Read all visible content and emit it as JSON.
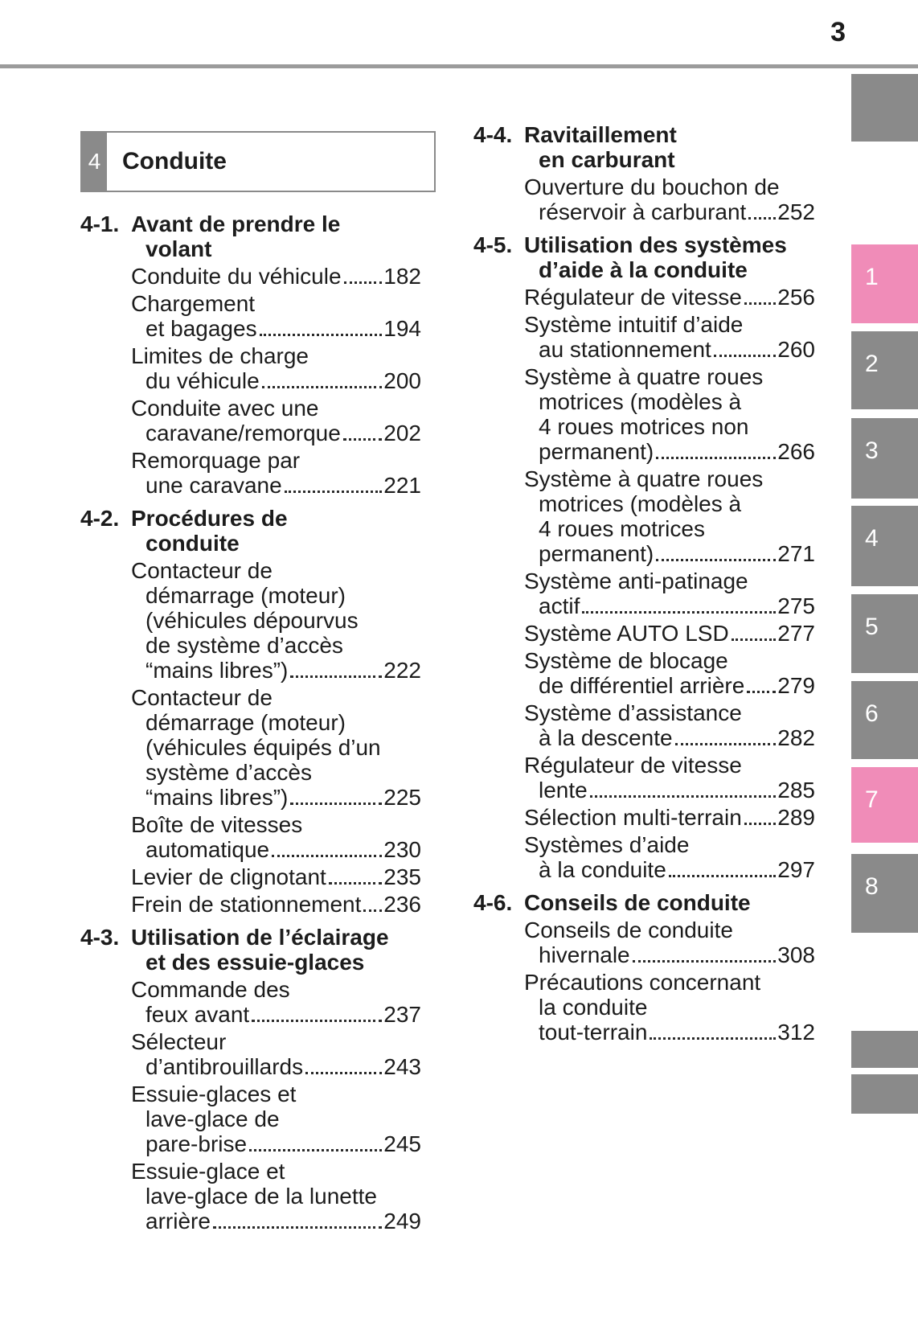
{
  "page": {
    "number": "3"
  },
  "chapter": {
    "tab_number": "4",
    "title": "Conduite"
  },
  "colors": {
    "tab_active": "#f08cb8",
    "tab_inactive": "#8a8a8a",
    "rule": "#9b9b9b",
    "text": "#1c1c1c"
  },
  "toc": {
    "left_sections": [
      {
        "num": "4-1.",
        "title_lines": [
          "Avant de prendre le",
          "volant"
        ],
        "entries": [
          {
            "lines": [
              "Conduite du véhicule"
            ],
            "page": "182"
          },
          {
            "lines": [
              "Chargement",
              "et bagages"
            ],
            "page": "194"
          },
          {
            "lines": [
              "Limites de charge",
              "du véhicule"
            ],
            "page": "200"
          },
          {
            "lines": [
              "Conduite avec une",
              "caravane/remorque"
            ],
            "page": "202"
          },
          {
            "lines": [
              "Remorquage par",
              "une caravane"
            ],
            "page": "221"
          }
        ]
      },
      {
        "num": "4-2.",
        "title_lines": [
          "Procédures de",
          "conduite"
        ],
        "entries": [
          {
            "lines": [
              "Contacteur de",
              "démarrage (moteur)",
              "(véhicules dépourvus",
              "de système d’accès",
              "“mains libres”)"
            ],
            "page": "222"
          },
          {
            "lines": [
              "Contacteur de",
              "démarrage (moteur)",
              "(véhicules équipés d’un",
              "système d’accès",
              "“mains libres”)"
            ],
            "page": "225"
          },
          {
            "lines": [
              "Boîte de vitesses",
              "automatique"
            ],
            "page": "230"
          },
          {
            "lines": [
              "Levier de clignotant"
            ],
            "page": "235"
          },
          {
            "lines": [
              "Frein de stationnement"
            ],
            "page": "236"
          }
        ]
      },
      {
        "num": "4-3.",
        "title_lines": [
          "Utilisation de l’éclairage",
          "et des essuie-glaces"
        ],
        "entries": [
          {
            "lines": [
              "Commande des",
              "feux avant"
            ],
            "page": "237"
          },
          {
            "lines": [
              "Sélecteur",
              "d’antibrouillards"
            ],
            "page": "243"
          },
          {
            "lines": [
              "Essuie-glaces et",
              "lave-glace de",
              "pare-brise"
            ],
            "page": "245"
          },
          {
            "lines": [
              "Essuie-glace et",
              "lave-glace de la lunette",
              "arrière"
            ],
            "page": "249"
          }
        ]
      }
    ],
    "right_sections": [
      {
        "num": "4-4.",
        "title_lines": [
          "Ravitaillement",
          "en carburant"
        ],
        "entries": [
          {
            "lines": [
              "Ouverture du bouchon de",
              "réservoir à carburant"
            ],
            "page": "252"
          }
        ]
      },
      {
        "num": "4-5.",
        "title_lines": [
          "Utilisation des systèmes",
          "d’aide à la conduite"
        ],
        "entries": [
          {
            "lines": [
              "Régulateur de vitesse"
            ],
            "page": "256"
          },
          {
            "lines": [
              "Système intuitif d’aide",
              "au stationnement"
            ],
            "page": "260"
          },
          {
            "lines": [
              "Système à quatre roues",
              "motrices (modèles à",
              "4 roues motrices non",
              "permanent)"
            ],
            "page": "266"
          },
          {
            "lines": [
              "Système à quatre roues",
              "motrices (modèles à",
              "4 roues motrices",
              "permanent)"
            ],
            "page": "271"
          },
          {
            "lines": [
              "Système anti-patinage",
              "actif"
            ],
            "page": "275"
          },
          {
            "lines": [
              "Système AUTO LSD"
            ],
            "page": "277"
          },
          {
            "lines": [
              "Système de blocage",
              "de différentiel arrière"
            ],
            "page": "279"
          },
          {
            "lines": [
              "Système d’assistance",
              "à la descente"
            ],
            "page": "282"
          },
          {
            "lines": [
              "Régulateur de vitesse",
              "lente"
            ],
            "page": "285"
          },
          {
            "lines": [
              "Sélection multi-terrain"
            ],
            "page": "289"
          },
          {
            "lines": [
              "Systèmes d’aide",
              "à la conduite"
            ],
            "page": "297"
          }
        ]
      },
      {
        "num": "4-6.",
        "title_lines": [
          "Conseils de conduite"
        ],
        "entries": [
          {
            "lines": [
              "Conseils de conduite",
              "hivernale"
            ],
            "page": "308"
          },
          {
            "lines": [
              "Précautions concernant",
              "la conduite",
              "tout-terrain"
            ],
            "page": "312"
          }
        ]
      }
    ]
  },
  "side_tabs": {
    "items": [
      {
        "label": "",
        "active": false
      },
      {
        "label": "1",
        "active": true
      },
      {
        "label": "2",
        "active": false
      },
      {
        "label": "3",
        "active": false
      },
      {
        "label": "4",
        "active": false
      },
      {
        "label": "5",
        "active": false
      },
      {
        "label": "6",
        "active": false
      },
      {
        "label": "7",
        "active": true
      },
      {
        "label": "8",
        "active": false
      },
      {
        "label": "",
        "active": false
      },
      {
        "label": "",
        "active": false
      }
    ]
  }
}
